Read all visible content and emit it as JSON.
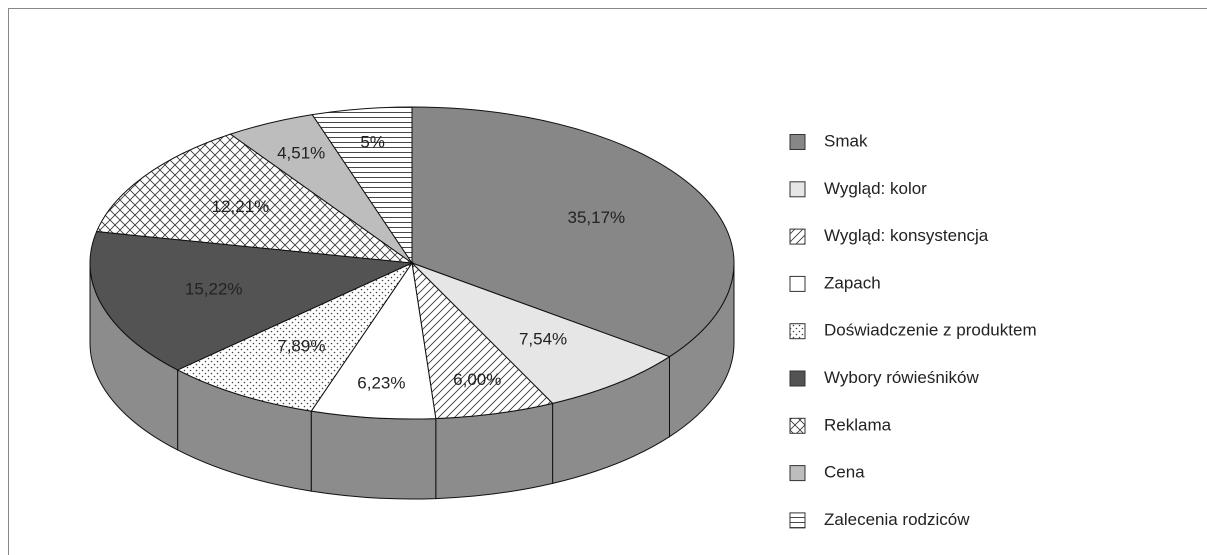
{
  "chart_data": {
    "type": "pie",
    "categories": [
      "Smak",
      "Wygląd: kolor",
      "Wygląd: konsystencja",
      "Zapach",
      "Doświadczenie z produktem",
      "Wybory rówieśników",
      "Reklama",
      "Cena",
      "Zalecenia rodziców"
    ],
    "values": [
      35.17,
      7.54,
      6.0,
      6.23,
      7.89,
      15.22,
      12.21,
      4.51,
      5
    ],
    "value_labels": [
      "35,17%",
      "7,54%",
      "6,00%",
      "6,23%",
      "7,89%",
      "15,22%",
      "12,21%",
      "4,51%",
      "5%"
    ],
    "colors": [
      "#878787",
      "#e6e6e6",
      "#ffffff",
      "#ffffff",
      "#ffffff",
      "#535353",
      "#ffffff",
      "#bdbdbd",
      "#ffffff"
    ],
    "patterns": [
      "solid",
      "solid",
      "hatch",
      "solid",
      "dots",
      "solid",
      "cross",
      "solid",
      "horizontal"
    ],
    "legend": "right"
  }
}
